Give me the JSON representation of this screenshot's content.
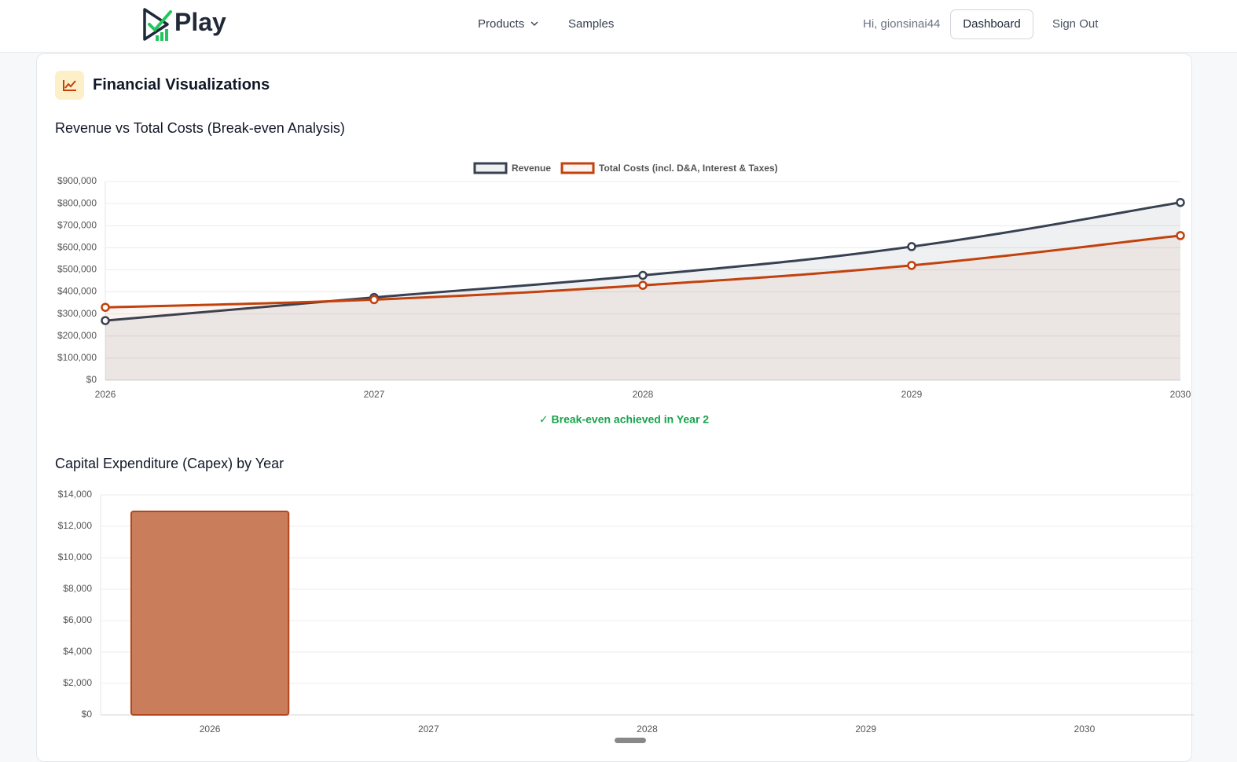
{
  "header": {
    "logo": "Play",
    "nav": [
      "Products",
      "Samples"
    ],
    "greeting": "Hi, gionsinai44",
    "dashboard": "Dashboard",
    "sign_out": "Sign Out"
  },
  "section": {
    "title": "Financial Visualizations"
  },
  "chart_data": [
    {
      "type": "line",
      "title": "Revenue vs Total Costs (Break-even Analysis)",
      "categories": [
        "2026",
        "2027",
        "2028",
        "2029",
        "2030"
      ],
      "series": [
        {
          "name": "Revenue",
          "color": "#374151",
          "fill": "rgba(55,65,81,0.08)",
          "values": [
            270000,
            375000,
            475000,
            605000,
            805000
          ]
        },
        {
          "name": "Total Costs (incl. D&A, Interest & Taxes)",
          "color": "#c2410c",
          "fill": "rgba(194,65,12,0.06)",
          "values": [
            330000,
            365000,
            430000,
            520000,
            655000
          ]
        }
      ],
      "ylim": [
        0,
        900000
      ],
      "yticks": [
        {
          "value": 0,
          "label": "$0"
        },
        {
          "value": 100000,
          "label": "$100,000"
        },
        {
          "value": 200000,
          "label": "$200,000"
        },
        {
          "value": 300000,
          "label": "$300,000"
        },
        {
          "value": 400000,
          "label": "$400,000"
        },
        {
          "value": 500000,
          "label": "$500,000"
        },
        {
          "value": 600000,
          "label": "$600,000"
        },
        {
          "value": 700000,
          "label": "$700,000"
        },
        {
          "value": 800000,
          "label": "$800,000"
        },
        {
          "value": 900000,
          "label": "$900,000"
        }
      ],
      "grid": true,
      "legend": "top",
      "note": "✓ Break-even achieved in Year 2"
    },
    {
      "type": "bar",
      "title": "Capital Expenditure (Capex) by Year",
      "categories": [
        "2026",
        "2027",
        "2028",
        "2029",
        "2030"
      ],
      "values": [
        12950,
        0,
        0,
        0,
        0
      ],
      "color": "#c97d5a",
      "border_color": "#b5451b",
      "ylim": [
        0,
        14000
      ],
      "yticks": [
        {
          "value": 0,
          "label": "$0"
        },
        {
          "value": 2000,
          "label": "$2,000"
        },
        {
          "value": 4000,
          "label": "$4,000"
        },
        {
          "value": 6000,
          "label": "$6,000"
        },
        {
          "value": 8000,
          "label": "$8,000"
        },
        {
          "value": 10000,
          "label": "$10,000"
        },
        {
          "value": 12000,
          "label": "$12,000"
        },
        {
          "value": 14000,
          "label": "$14,000"
        }
      ],
      "grid": true
    }
  ]
}
